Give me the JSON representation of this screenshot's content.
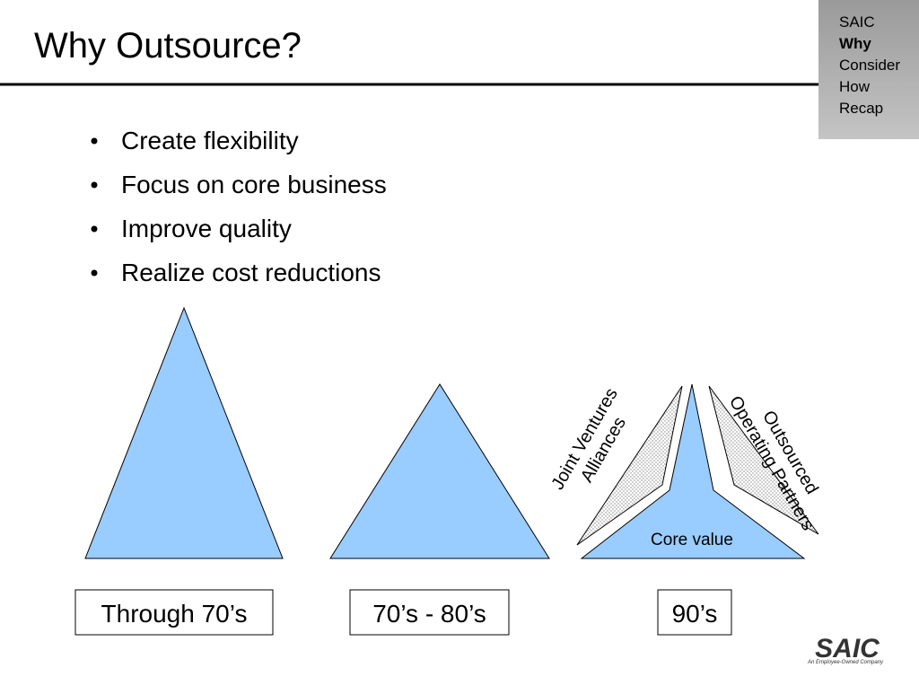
{
  "header": {
    "title": "Why Outsource?"
  },
  "nav": {
    "items": [
      "SAIC",
      "Why",
      "Consider",
      "How",
      "Recap"
    ],
    "current": "Why"
  },
  "bullets": [
    "Create flexibility",
    "Focus on core business",
    "Improve quality",
    "Realize cost reductions"
  ],
  "diagram": {
    "left_band": [
      "Joint Ventures",
      "Alliances"
    ],
    "right_band": [
      "Outsourced",
      "Operating Partners"
    ],
    "core": "Core value"
  },
  "eras": [
    "Through 70’s",
    "70’s - 80’s",
    "90’s"
  ],
  "logo": {
    "name": "SAIC",
    "tagline": "An Employee-Owned Company"
  }
}
